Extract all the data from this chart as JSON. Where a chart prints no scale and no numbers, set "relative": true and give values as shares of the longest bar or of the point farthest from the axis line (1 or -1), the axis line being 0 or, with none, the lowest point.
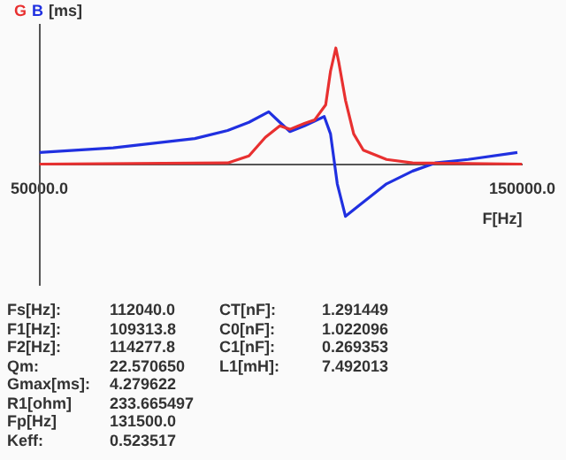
{
  "chart_data": {
    "type": "line",
    "relative": true,
    "ylabel": "[ms]",
    "xlabel": "F[Hz]",
    "legend": "top left",
    "grid": false,
    "marker": "none",
    "line_style": "solid",
    "xlim": [
      50000,
      150000
    ],
    "xticks": [
      {
        "value": 50000,
        "label": "50000.0"
      },
      {
        "value": 150000,
        "label": "150000.0"
      }
    ],
    "series": [
      {
        "name": "G",
        "color": "#e83030",
        "x": [
          50000,
          89000,
          93400,
          96800,
          99800,
          101900,
          104900,
          107000,
          109300,
          110300,
          111400,
          112000,
          113400,
          115100,
          117100,
          121900,
          127300,
          150000
        ],
        "values": [
          0,
          0.01,
          0.07,
          0.23,
          0.33,
          0.3,
          0.35,
          0.38,
          0.51,
          0.8,
          1,
          0.88,
          0.55,
          0.26,
          0.12,
          0.04,
          0.01,
          0
        ]
      },
      {
        "name": "B",
        "color": "#2030e0",
        "x": [
          50000,
          65300,
          82200,
          89000,
          93400,
          97500,
          99800,
          101900,
          104900,
          109000,
          110300,
          111700,
          113400,
          116100,
          121900,
          127300,
          132000,
          138800,
          149000
        ],
        "values": [
          0.1,
          0.14,
          0.22,
          0.29,
          0.36,
          0.45,
          0.36,
          0.28,
          0.33,
          0.41,
          0.26,
          -0.17,
          -0.45,
          -0.36,
          -0.17,
          -0.06,
          0.01,
          0.04,
          0.1
        ]
      }
    ],
    "annotations": [
      "Fs[Hz]:",
      "112040.0",
      "F1[Hz]:",
      "109313.8",
      "F2[Hz]:",
      "114277.8",
      "Qm:",
      "22.570650",
      "Gmax[ms]:",
      "4.279622",
      "R1[ohm]",
      "233.665497",
      "Fp[Hz]",
      "131500.0",
      "Keff:",
      "0.523517",
      "CT[nF]:",
      "1.291449",
      "C0[nF]:",
      "1.022096",
      "C1[nF]:",
      "0.269353",
      "L1[mH]:",
      "7.492013"
    ]
  }
}
